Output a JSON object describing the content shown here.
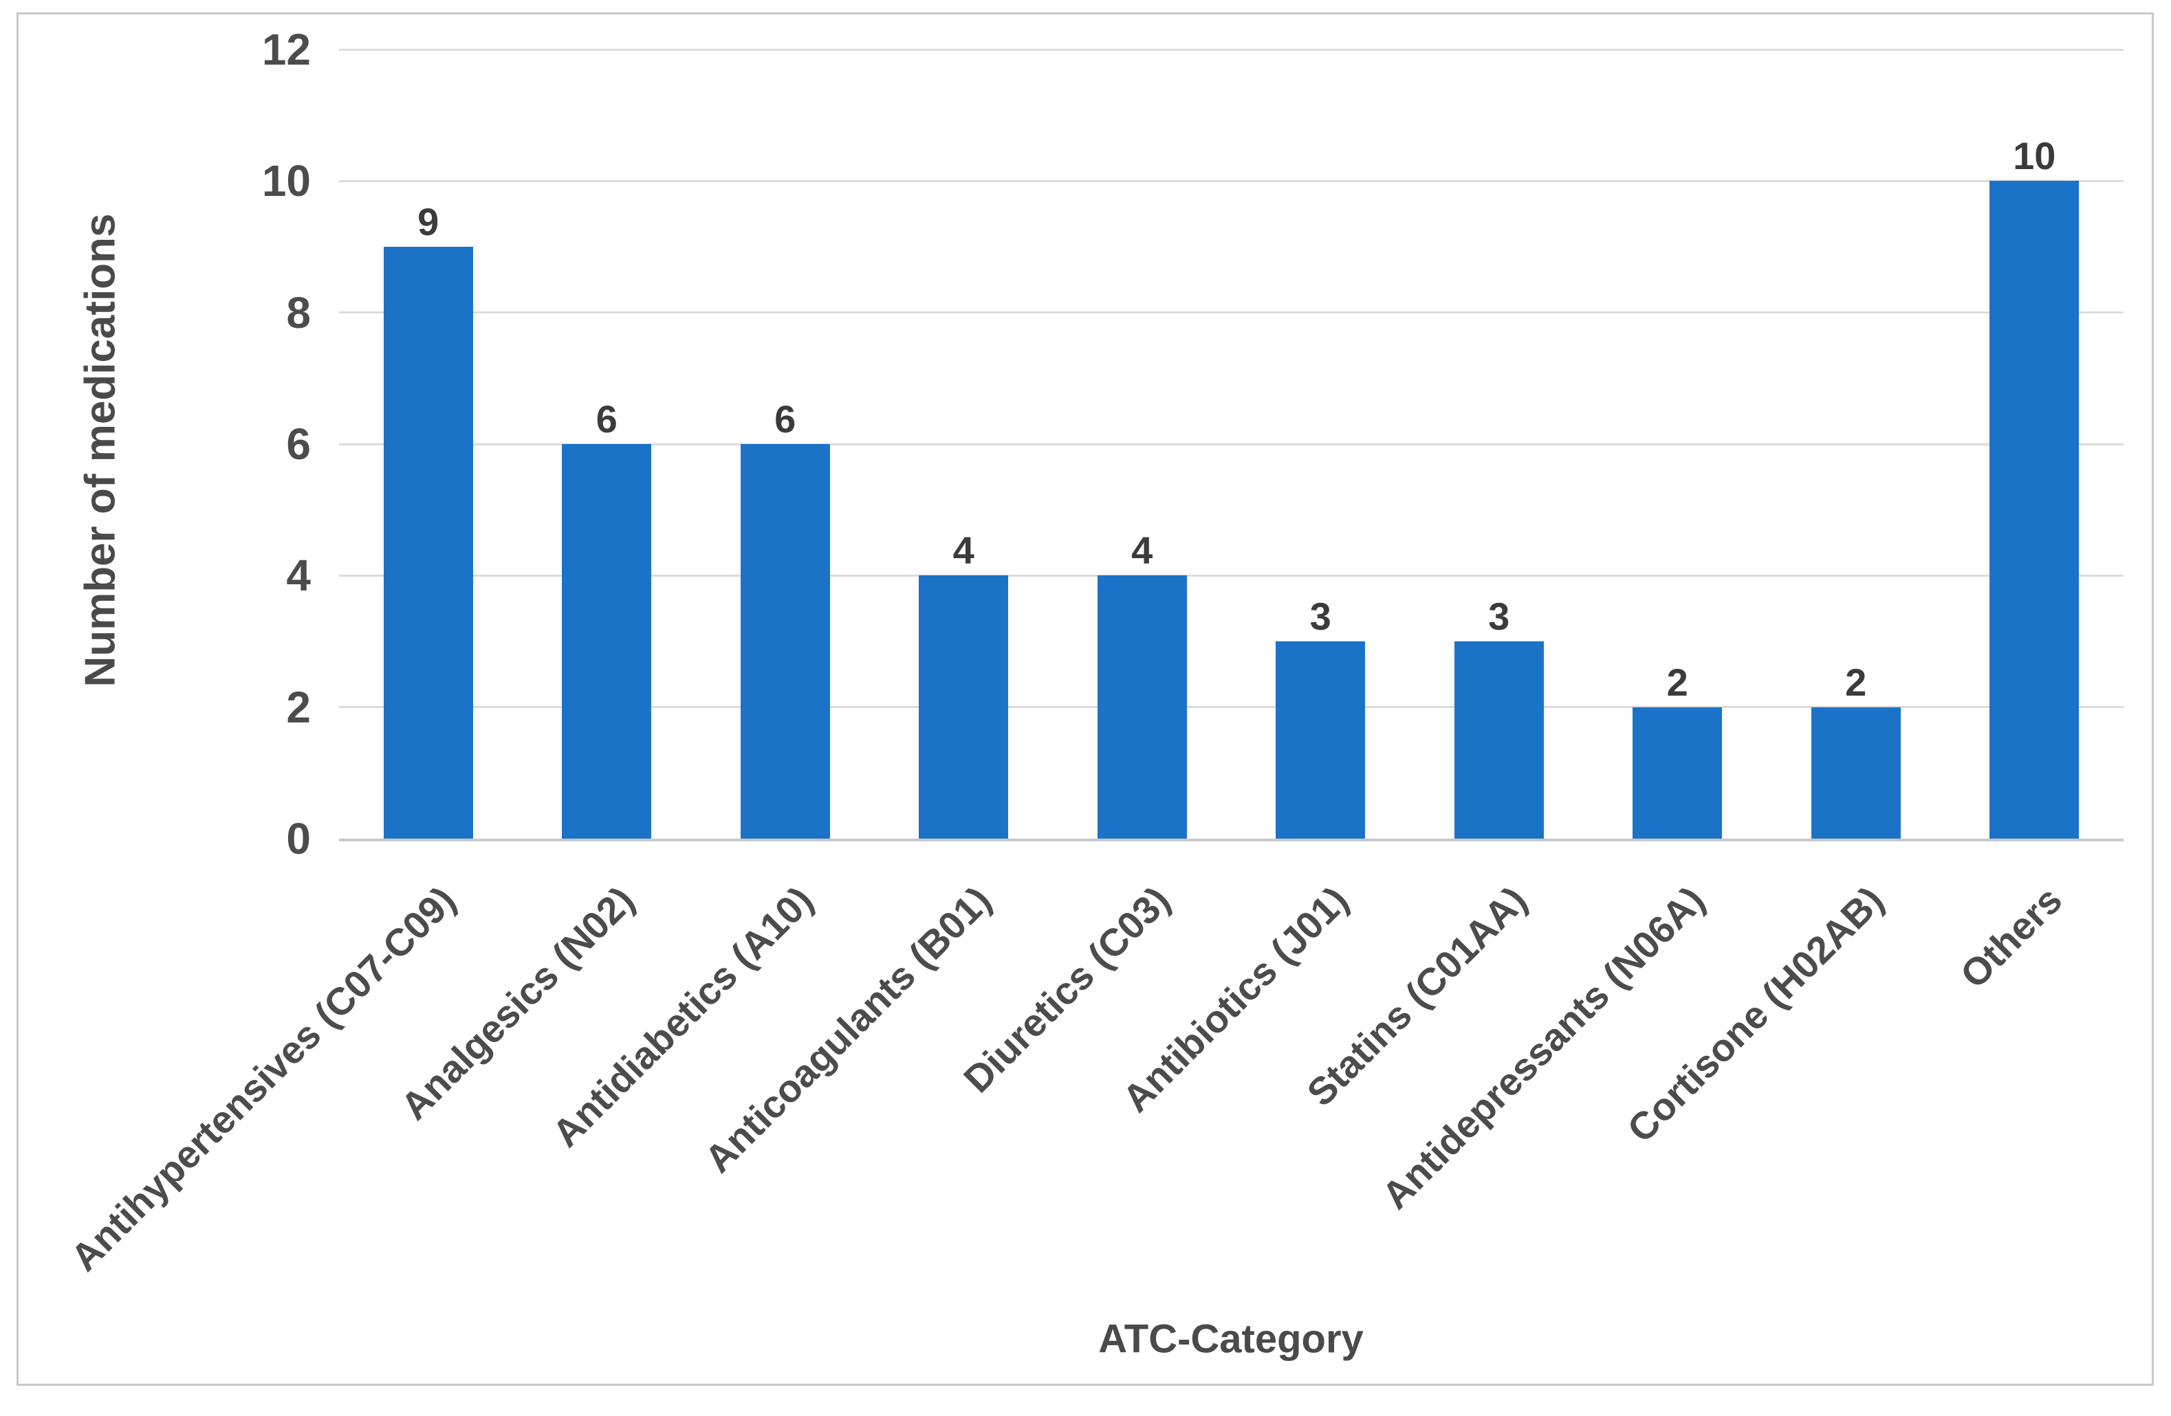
{
  "chart_data": {
    "type": "bar",
    "categories": [
      "Antihypertensives (C07-C09)",
      "Analgesics (N02)",
      "Antidiabetics (A10)",
      "Anticoagulants (B01)",
      "Diuretics (C03)",
      "Antibiotics (J01)",
      "Statins (C01AA)",
      "Antidepressants (N06A)",
      "Cortisone (H02AB)",
      "Others"
    ],
    "values": [
      9,
      6,
      6,
      4,
      4,
      3,
      3,
      2,
      2,
      10
    ],
    "data_labels": [
      "9",
      "6",
      "6",
      "4",
      "4",
      "3",
      "3",
      "2",
      "2",
      "10"
    ],
    "xlabel": "ATC-Category",
    "ylabel": "Number of medications",
    "ylim": [
      0,
      12
    ],
    "yticks": [
      0,
      2,
      4,
      6,
      8,
      10,
      12
    ],
    "grid": true,
    "legend": false,
    "bar_color": "#1B73C8"
  }
}
